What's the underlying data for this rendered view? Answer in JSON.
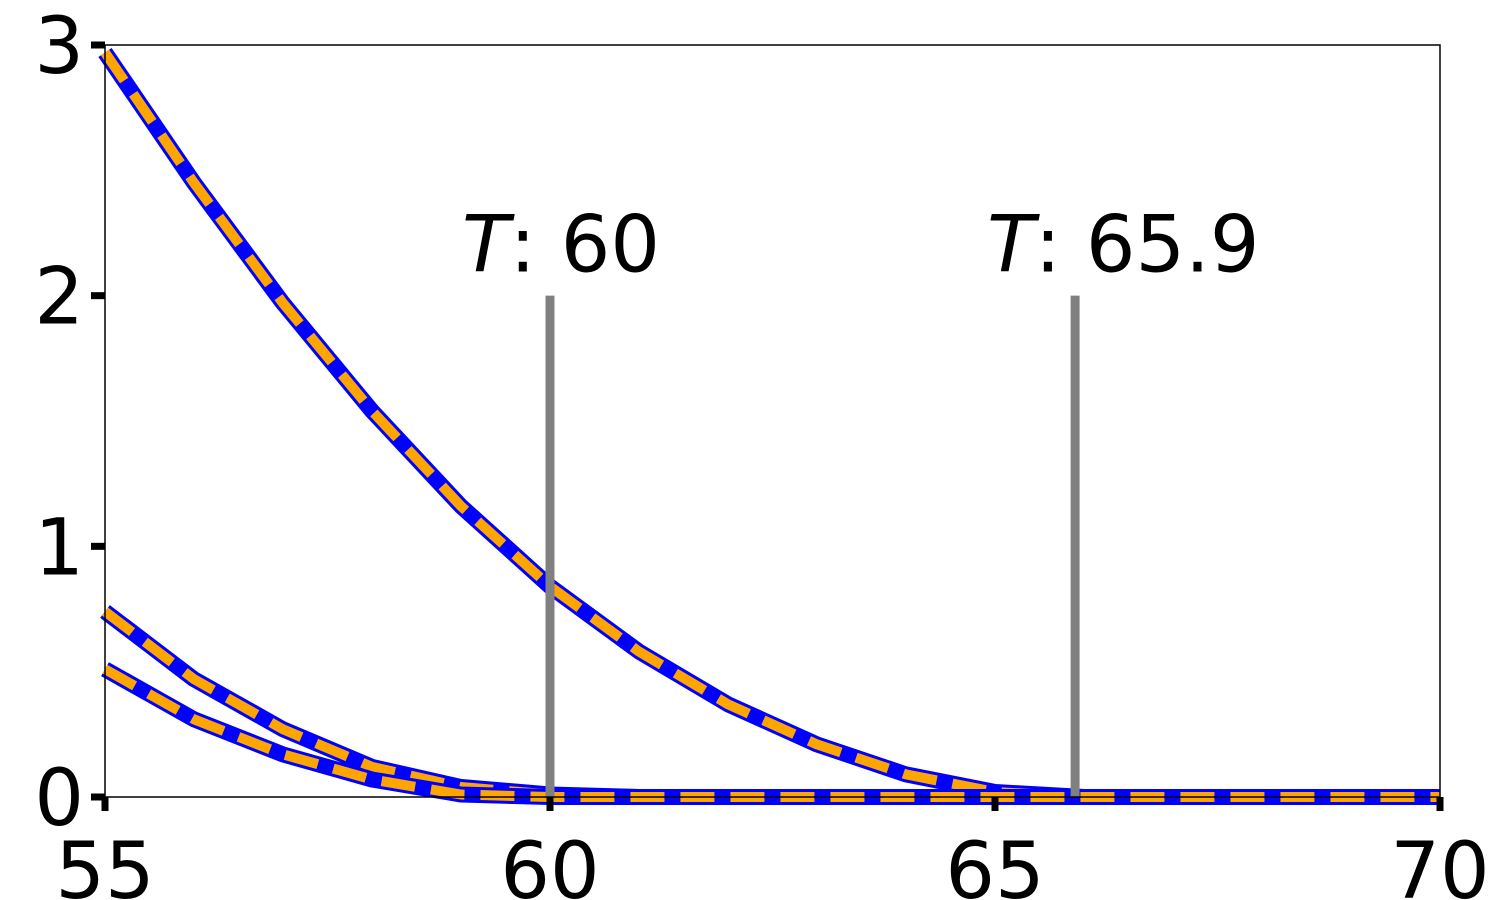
{
  "chart_data": {
    "type": "line",
    "title": "",
    "xlabel": "",
    "ylabel": "",
    "xlim": [
      55,
      70
    ],
    "ylim": [
      0,
      3
    ],
    "grid": false,
    "x_ticks": [
      "55",
      "60",
      "65",
      "70"
    ],
    "y_ticks": [
      "0",
      "1",
      "2",
      "3"
    ],
    "x": [
      55,
      56,
      57,
      58,
      59,
      60,
      61,
      62,
      63,
      64,
      65,
      66,
      67,
      68,
      69,
      70
    ],
    "series": [
      {
        "values": [
          2.97,
          2.45,
          1.97,
          1.54,
          1.16,
          0.84,
          0.58,
          0.37,
          0.21,
          0.09,
          0.02,
          0.0,
          0.0,
          0.0,
          0.0,
          0.0
        ],
        "color": "#0000ff",
        "overlay_color": "#ffa500"
      },
      {
        "values": [
          0.74,
          0.47,
          0.27,
          0.12,
          0.04,
          0.01,
          0.0,
          0.0,
          0.0,
          0.0,
          0.0,
          0.0,
          0.0,
          0.0,
          0.0,
          0.0
        ],
        "color": "#0000ff",
        "overlay_color": "#ffa500"
      },
      {
        "values": [
          0.51,
          0.31,
          0.17,
          0.07,
          0.01,
          0.0,
          0.0,
          0.0,
          0.0,
          0.0,
          0.0,
          0.0,
          0.0,
          0.0,
          0.0,
          0.0
        ],
        "color": "#0000ff",
        "overlay_color": "#ffa500"
      }
    ],
    "annotations": [
      {
        "symbol": "T",
        "value_text": ": 60",
        "x": 60,
        "y_top": 2.0,
        "color": "#808080"
      },
      {
        "symbol": "T",
        "value_text": ": 65.9",
        "x": 65.9,
        "y_top": 2.0,
        "color": "#808080"
      }
    ]
  }
}
